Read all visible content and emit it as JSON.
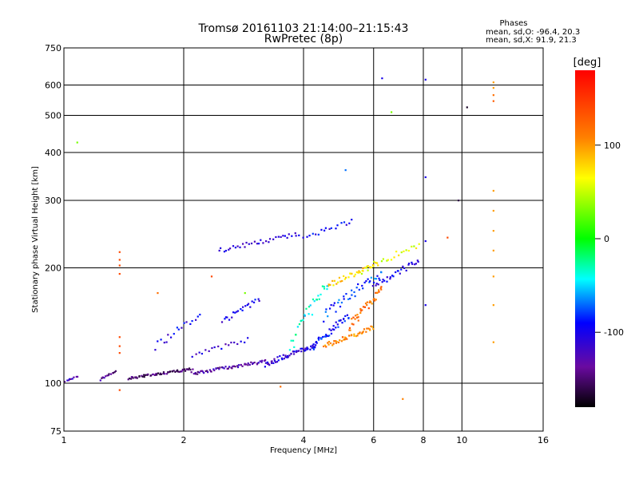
{
  "chart_data": {
    "type": "scatter",
    "title": "Tromsø 20161103 21:14:00–21:15:43",
    "subtitle": "RwPretec (8p)",
    "xlabel": "Frequency [MHz]",
    "ylabel": "Stationary phase Virtual Height [km]",
    "x_scale": "log",
    "y_scale": "log",
    "xlim": [
      1,
      16
    ],
    "ylim": [
      75,
      750
    ],
    "x_ticks": [
      1,
      2,
      4,
      6,
      8,
      10,
      16
    ],
    "y_ticks": [
      75,
      100,
      200,
      300,
      400,
      500,
      600,
      750
    ],
    "grid": true,
    "stats": {
      "heading": "Phases",
      "line_o": "mean, sd,O: -96.4, 20.3",
      "line_x": "mean, sd,X:  91.9, 21.3"
    },
    "colorbar": {
      "label": "[deg]",
      "range": [
        -180,
        180
      ],
      "ticks": [
        100,
        0,
        -100
      ],
      "colors": [
        "#ff0000",
        "#ff8000",
        "#ffff00",
        "#00ff00",
        "#00ffff",
        "#0000ff",
        "#800080",
        "#000000"
      ]
    },
    "phase_colors": {
      "o_trace": "#1f3fe0",
      "x_trace": "#f0a010",
      "low_trace": "#4b1090",
      "mixed": "#22c8e8"
    },
    "traces": [
      {
        "x_range": [
          1.0,
          1.08
        ],
        "y": [
          101,
          104
        ],
        "n": 10,
        "phase": -120
      },
      {
        "x_range": [
          1.23,
          1.35
        ],
        "y": [
          102,
          108
        ],
        "n": 14,
        "phase": -140
      },
      {
        "x_range": [
          1.45,
          2.1
        ],
        "y": [
          103,
          109
        ],
        "n": 60,
        "phase": -150
      },
      {
        "x_range": [
          2.1,
          3.2
        ],
        "y": [
          106,
          114
        ],
        "n": 60,
        "phase": -130
      },
      {
        "x_range": [
          3.2,
          4.3
        ],
        "y": [
          112,
          126
        ],
        "n": 55,
        "phase": -110
      },
      {
        "x_range": [
          4.2,
          5.2
        ],
        "y": [
          124,
          150
        ],
        "n": 40,
        "phase": -90
      },
      {
        "x_range": [
          4.5,
          6.3
        ],
        "y": [
          150,
          195
        ],
        "n": 40,
        "phase": -80
      },
      {
        "x_range": [
          6.0,
          7.8
        ],
        "y": [
          180,
          208
        ],
        "n": 30,
        "phase": -100
      },
      {
        "x_range": [
          2.45,
          3.9
        ],
        "y": [
          222,
          245
        ],
        "n": 35,
        "phase": -110
      },
      {
        "x_range": [
          4.0,
          5.3
        ],
        "y": [
          240,
          265
        ],
        "n": 18,
        "phase": -100
      },
      {
        "x_range": [
          1.7,
          2.2
        ],
        "y": [
          125,
          150
        ],
        "n": 18,
        "phase": -100
      },
      {
        "x_range": [
          2.5,
          3.1
        ],
        "y": [
          145,
          165
        ],
        "n": 22,
        "phase": -100
      },
      {
        "x_range": [
          2.1,
          2.9
        ],
        "y": [
          118,
          130
        ],
        "n": 18,
        "phase": -110
      },
      {
        "x_range": [
          4.5,
          6.0
        ],
        "y": [
          125,
          140
        ],
        "n": 45,
        "phase": 110
      },
      {
        "x_range": [
          5.2,
          6.3
        ],
        "y": [
          140,
          175
        ],
        "n": 40,
        "phase": 120
      },
      {
        "x_range": [
          4.6,
          6.1
        ],
        "y": [
          180,
          205
        ],
        "n": 35,
        "phase": 80
      },
      {
        "x_range": [
          5.5,
          7.8
        ],
        "y": [
          195,
          230
        ],
        "n": 25,
        "phase": 60
      },
      {
        "x_range": [
          3.7,
          4.6
        ],
        "y": [
          125,
          180
        ],
        "n": 30,
        "phase": -40
      }
    ],
    "isolated_points": [
      {
        "x": 1.08,
        "y": 425,
        "phase": 30
      },
      {
        "x": 1.38,
        "y": 220,
        "phase": 140
      },
      {
        "x": 1.38,
        "y": 210,
        "phase": 140
      },
      {
        "x": 1.38,
        "y": 203,
        "phase": 140
      },
      {
        "x": 1.38,
        "y": 193,
        "phase": 140
      },
      {
        "x": 1.38,
        "y": 132,
        "phase": 140
      },
      {
        "x": 1.38,
        "y": 125,
        "phase": 140
      },
      {
        "x": 1.38,
        "y": 120,
        "phase": 140
      },
      {
        "x": 1.38,
        "y": 96,
        "phase": 140
      },
      {
        "x": 2.35,
        "y": 190,
        "phase": 140
      },
      {
        "x": 2.85,
        "y": 172,
        "phase": 30
      },
      {
        "x": 5.1,
        "y": 360,
        "phase": -70
      },
      {
        "x": 6.3,
        "y": 625,
        "phase": -100
      },
      {
        "x": 6.65,
        "y": 510,
        "phase": 30
      },
      {
        "x": 7.1,
        "y": 91,
        "phase": 110
      },
      {
        "x": 8.1,
        "y": 620,
        "phase": -100
      },
      {
        "x": 8.1,
        "y": 345,
        "phase": -100
      },
      {
        "x": 8.1,
        "y": 235,
        "phase": -100
      },
      {
        "x": 8.1,
        "y": 160,
        "phase": -100
      },
      {
        "x": 9.2,
        "y": 240,
        "phase": 140
      },
      {
        "x": 9.8,
        "y": 300,
        "phase": -160
      },
      {
        "x": 10.3,
        "y": 525,
        "phase": -170
      },
      {
        "x": 12.0,
        "y": 610,
        "phase": 100
      },
      {
        "x": 12.0,
        "y": 590,
        "phase": 100
      },
      {
        "x": 12.0,
        "y": 565,
        "phase": 120
      },
      {
        "x": 12.0,
        "y": 545,
        "phase": 130
      },
      {
        "x": 12.0,
        "y": 318,
        "phase": 100
      },
      {
        "x": 12.0,
        "y": 282,
        "phase": 100
      },
      {
        "x": 12.0,
        "y": 250,
        "phase": 100
      },
      {
        "x": 12.0,
        "y": 222,
        "phase": 100
      },
      {
        "x": 12.0,
        "y": 190,
        "phase": 100
      },
      {
        "x": 12.0,
        "y": 160,
        "phase": 100
      },
      {
        "x": 12.0,
        "y": 128,
        "phase": 100
      },
      {
        "x": 1.72,
        "y": 172,
        "phase": 120
      },
      {
        "x": 3.5,
        "y": 98,
        "phase": 120
      }
    ]
  }
}
